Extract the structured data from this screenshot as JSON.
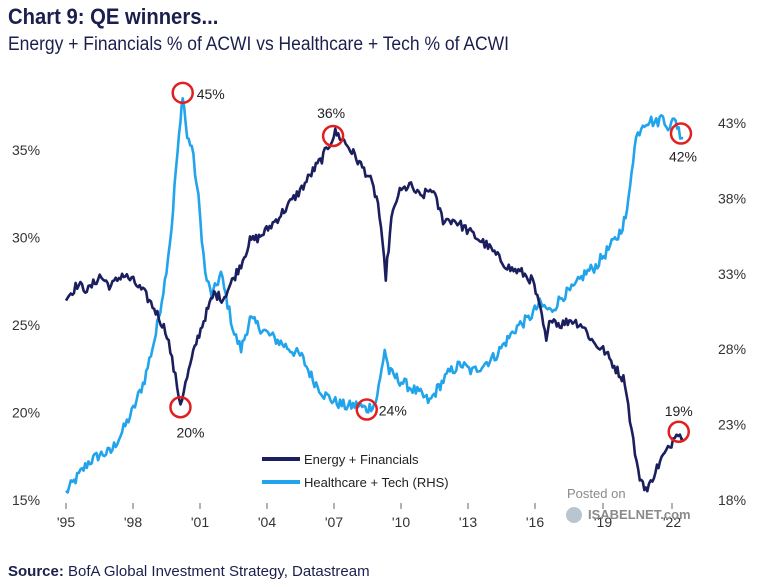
{
  "header": {
    "title": "Chart 9: QE winners...",
    "subtitle": "Energy + Financials % of ACWI vs Healthcare + Tech % of ACWI"
  },
  "footer": {
    "source_label": "Source:",
    "source_text": "BofA Global Investment Strategy, Datastream"
  },
  "watermark": {
    "line1": "Posted on",
    "line2": "ISABELNET.com"
  },
  "chart_data": {
    "type": "line",
    "title": "Chart 9: QE winners...",
    "subtitle": "Energy + Financials % of ACWI vs Healthcare + Tech % of ACWI",
    "xlabel": "",
    "ylabel_left": "",
    "ylabel_right": "",
    "x_ticks": [
      "'95",
      "'98",
      "'01",
      "'04",
      "'07",
      "'10",
      "'13",
      "'16",
      "'19",
      "'22"
    ],
    "x_range": [
      1995,
      2023
    ],
    "y_left": {
      "range": [
        15,
        38
      ],
      "ticks": [
        15,
        20,
        25,
        30,
        35
      ],
      "tick_labels": [
        "15%",
        "20%",
        "25%",
        "30%",
        "35%"
      ]
    },
    "y_right": {
      "range": [
        18,
        45
      ],
      "ticks": [
        18,
        23,
        28,
        33,
        38,
        43
      ],
      "tick_labels": [
        "18%",
        "23%",
        "28%",
        "33%",
        "38%",
        "43%"
      ]
    },
    "grid": false,
    "legend": {
      "position": "bottom-center"
    },
    "series": [
      {
        "name": "Energy + Financials",
        "axis": "left",
        "color": "#1b1f5e",
        "points": [
          [
            1995.0,
            26.5
          ],
          [
            1995.5,
            27.3
          ],
          [
            1996.0,
            27.0
          ],
          [
            1996.5,
            27.8
          ],
          [
            1997.0,
            27.2
          ],
          [
            1997.5,
            27.9
          ],
          [
            1998.0,
            27.5
          ],
          [
            1998.5,
            26.8
          ],
          [
            1999.0,
            25.8
          ],
          [
            1999.5,
            24.5
          ],
          [
            1999.8,
            22.5
          ],
          [
            2000.1,
            20.5
          ],
          [
            2000.4,
            22.0
          ],
          [
            2000.8,
            24.0
          ],
          [
            2001.2,
            25.5
          ],
          [
            2001.6,
            26.8
          ],
          [
            2002.0,
            26.5
          ],
          [
            2002.4,
            27.5
          ],
          [
            2002.8,
            28.5
          ],
          [
            2003.2,
            29.8
          ],
          [
            2003.6,
            30.0
          ],
          [
            2004.0,
            30.5
          ],
          [
            2004.5,
            31.2
          ],
          [
            2005.0,
            32.0
          ],
          [
            2005.5,
            32.8
          ],
          [
            2006.0,
            33.8
          ],
          [
            2006.4,
            34.5
          ],
          [
            2006.8,
            35.5
          ],
          [
            2007.0,
            36.0
          ],
          [
            2007.4,
            35.5
          ],
          [
            2007.8,
            34.8
          ],
          [
            2008.2,
            34.0
          ],
          [
            2008.5,
            33.5
          ],
          [
            2008.9,
            32.0
          ],
          [
            2009.1,
            29.5
          ],
          [
            2009.25,
            27.8
          ],
          [
            2009.5,
            31.0
          ],
          [
            2009.8,
            32.5
          ],
          [
            2010.3,
            33.0
          ],
          [
            2010.8,
            32.3
          ],
          [
            2011.3,
            32.8
          ],
          [
            2011.8,
            31.0
          ],
          [
            2012.3,
            31.0
          ],
          [
            2012.8,
            30.5
          ],
          [
            2013.3,
            30.0
          ],
          [
            2013.8,
            29.5
          ],
          [
            2014.3,
            28.8
          ],
          [
            2014.8,
            28.2
          ],
          [
            2015.3,
            28.0
          ],
          [
            2015.8,
            27.5
          ],
          [
            2016.0,
            26.5
          ],
          [
            2016.2,
            25.5
          ],
          [
            2016.4,
            24.0
          ],
          [
            2016.6,
            25.5
          ],
          [
            2017.0,
            25.0
          ],
          [
            2017.5,
            25.3
          ],
          [
            2018.0,
            25.0
          ],
          [
            2018.5,
            24.0
          ],
          [
            2019.0,
            23.5
          ],
          [
            2019.5,
            22.5
          ],
          [
            2019.9,
            21.8
          ],
          [
            2020.2,
            19.0
          ],
          [
            2020.5,
            16.5
          ],
          [
            2020.9,
            15.5
          ],
          [
            2021.2,
            16.5
          ],
          [
            2021.6,
            17.5
          ],
          [
            2021.9,
            18.0
          ],
          [
            2022.2,
            19.0
          ],
          [
            2022.5,
            18.5
          ]
        ]
      },
      {
        "name": "Healthcare + Tech (RHS)",
        "axis": "right",
        "color": "#22a4ec",
        "points": [
          [
            1995.0,
            18.5
          ],
          [
            1995.5,
            19.5
          ],
          [
            1996.0,
            20.5
          ],
          [
            1996.5,
            21.0
          ],
          [
            1997.0,
            21.2
          ],
          [
            1997.5,
            22.5
          ],
          [
            1998.0,
            24.0
          ],
          [
            1998.5,
            26.0
          ],
          [
            1999.0,
            29.0
          ],
          [
            1999.4,
            32.5
          ],
          [
            1999.7,
            36.0
          ],
          [
            1999.9,
            40.0
          ],
          [
            2000.1,
            43.0
          ],
          [
            2000.2,
            45.0
          ],
          [
            2000.4,
            42.0
          ],
          [
            2000.6,
            41.5
          ],
          [
            2000.9,
            38.0
          ],
          [
            2001.2,
            33.0
          ],
          [
            2001.5,
            31.5
          ],
          [
            2001.9,
            33.0
          ],
          [
            2002.2,
            31.0
          ],
          [
            2002.5,
            29.0
          ],
          [
            2002.8,
            28.0
          ],
          [
            2003.2,
            30.0
          ],
          [
            2003.6,
            29.5
          ],
          [
            2004.0,
            29.0
          ],
          [
            2004.5,
            28.5
          ],
          [
            2005.0,
            28.0
          ],
          [
            2005.5,
            27.5
          ],
          [
            2006.0,
            26.0
          ],
          [
            2006.5,
            25.0
          ],
          [
            2007.0,
            24.5
          ],
          [
            2007.5,
            24.2
          ],
          [
            2008.0,
            24.3
          ],
          [
            2008.4,
            24.0
          ],
          [
            2008.8,
            24.5
          ],
          [
            2009.0,
            26.0
          ],
          [
            2009.2,
            28.0
          ],
          [
            2009.4,
            26.5
          ],
          [
            2009.8,
            26.0
          ],
          [
            2010.3,
            25.5
          ],
          [
            2010.8,
            25.0
          ],
          [
            2011.2,
            24.5
          ],
          [
            2011.6,
            25.5
          ],
          [
            2012.1,
            26.5
          ],
          [
            2012.6,
            27.0
          ],
          [
            2013.1,
            26.5
          ],
          [
            2013.6,
            27.0
          ],
          [
            2014.1,
            27.5
          ],
          [
            2014.6,
            28.5
          ],
          [
            2015.1,
            29.5
          ],
          [
            2015.6,
            30.0
          ],
          [
            2016.1,
            31.0
          ],
          [
            2016.6,
            30.5
          ],
          [
            2017.1,
            31.5
          ],
          [
            2017.6,
            32.0
          ],
          [
            2018.1,
            33.0
          ],
          [
            2018.6,
            33.5
          ],
          [
            2019.1,
            34.5
          ],
          [
            2019.6,
            35.5
          ],
          [
            2020.0,
            37.0
          ],
          [
            2020.2,
            40.0
          ],
          [
            2020.4,
            42.0
          ],
          [
            2020.7,
            43.0
          ],
          [
            2021.0,
            43.2
          ],
          [
            2021.3,
            43.0
          ],
          [
            2021.6,
            43.5
          ],
          [
            2021.9,
            42.5
          ],
          [
            2022.1,
            43.5
          ],
          [
            2022.3,
            42.5
          ],
          [
            2022.5,
            42.0
          ]
        ]
      }
    ],
    "annotations": [
      {
        "label": "45%",
        "axis": "right",
        "x": 2000.2,
        "y": 45.0,
        "circle_color": "#e02020"
      },
      {
        "label": "20%",
        "axis": "left",
        "x": 2000.1,
        "y": 20.3,
        "circle_color": "#e02020"
      },
      {
        "label": "36%",
        "axis": "left",
        "x": 2006.9,
        "y": 35.8,
        "circle_color": "#e02020"
      },
      {
        "label": "24%",
        "axis": "right",
        "x": 2008.4,
        "y": 24.0,
        "circle_color": "#e02020"
      },
      {
        "label": "42%",
        "axis": "right",
        "x": 2022.4,
        "y": 42.3,
        "circle_color": "#e02020"
      },
      {
        "label": "19%",
        "axis": "left",
        "x": 2022.3,
        "y": 18.9,
        "circle_color": "#e02020"
      }
    ]
  }
}
